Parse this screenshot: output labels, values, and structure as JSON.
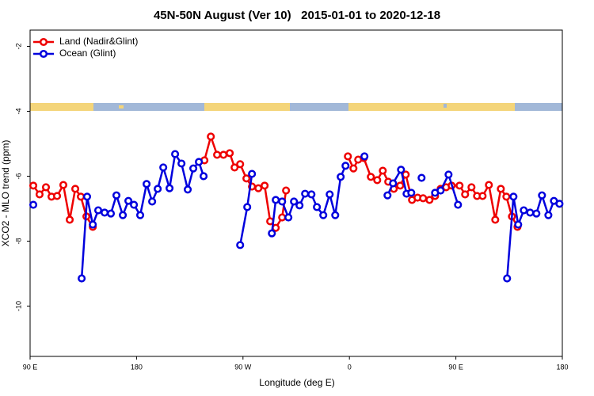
{
  "chart_data": {
    "type": "line",
    "title": "45N-50N August (Ver 10)   2015-01-01 to 2020-12-18",
    "x_label": "Longitude (deg E)",
    "y_label": "XCO2 - MLO trend (ppm)",
    "xlim": [
      90,
      540
    ],
    "ylim": [
      -11.55,
      -1.5
    ],
    "xticks": [
      {
        "value": 90,
        "label": "90 E"
      },
      180,
      {
        "value": 270,
        "label": "90 W"
      },
      {
        "value": 360,
        "label": "0"
      },
      {
        "value": 450,
        "label": "90 E"
      },
      {
        "value": 540,
        "label": "180"
      }
    ],
    "yticks": [
      -2,
      -4,
      -6,
      -8,
      -10
    ],
    "legend": "top-left",
    "series": [
      {
        "name": "Land (Nadir&Glint)",
        "color": "#ee0000",
        "x": [
          92.7,
          98.0,
          103.4,
          108.1,
          112.8,
          118.1,
          123.5,
          128.2,
          132.9,
          137.6,
          143.0,
          null,
          237.4,
          242.8,
          248.1,
          253.5,
          258.8,
          262.9,
          267.6,
          272.9,
          277.6,
          283.0,
          288.3,
          293.0,
          297.7,
          303.1,
          306.4,
          null,
          358.7,
          363.4,
          367.4,
          372.1,
          378.1,
          383.5,
          388.2,
          392.8,
          397.5,
          402.9,
          407.6,
          412.9,
          417.6,
          422.3,
          427.7,
          432.4,
          437.1,
          441.8,
          446.4,
          453.1,
          457.8,
          463.2,
          467.9,
          472.6,
          477.9,
          483.3,
          488.0,
          492.7,
          497.4,
          502.1
        ],
        "values": [
          -6.29,
          -6.56,
          -6.34,
          -6.63,
          -6.61,
          -6.27,
          -7.34,
          -6.39,
          -6.63,
          -7.24,
          -7.56,
          null,
          -5.51,
          -4.78,
          -5.34,
          -5.34,
          -5.29,
          -5.73,
          -5.63,
          -6.07,
          -6.32,
          -6.37,
          -6.29,
          -7.39,
          -7.59,
          -7.27,
          -6.44,
          null,
          -5.39,
          -5.76,
          -5.49,
          -5.44,
          -6.02,
          -6.12,
          -5.83,
          -6.17,
          -6.39,
          -6.29,
          -5.95,
          -6.73,
          -6.66,
          -6.68,
          -6.73,
          -6.61,
          -6.39,
          -6.34,
          -6.29,
          -6.29,
          -6.56,
          -6.34,
          -6.61,
          -6.61,
          -6.27,
          -7.34,
          -6.39,
          -6.63,
          -7.24,
          -7.56
        ]
      },
      {
        "name": "Ocean (Glint)",
        "color": "#0000dd",
        "x": [
          92.7,
          null,
          133.6,
          138.2,
          143.0,
          147.6,
          153.0,
          158.3,
          163.0,
          168.4,
          173.1,
          177.8,
          183.1,
          188.5,
          193.2,
          197.9,
          202.6,
          207.9,
          212.6,
          218.0,
          223.3,
          228.0,
          232.7,
          236.7,
          null,
          267.6,
          273.6,
          277.6,
          null,
          294.4,
          297.7,
          303.1,
          308.4,
          313.1,
          317.8,
          322.5,
          327.9,
          332.5,
          337.9,
          343.3,
          348.0,
          352.6,
          356.7,
          null,
          372.7,
          null,
          392.2,
          396.9,
          403.6,
          408.3,
          412.3,
          null,
          421.0,
          null,
          432.4,
          437.1,
          443.8,
          451.8,
          null,
          493.3,
          498.7,
          502.7,
          507.4,
          512.8,
          518.1,
          522.8,
          528.2,
          532.9,
          537.6
        ],
        "values": [
          -6.88,
          null,
          -9.15,
          -6.63,
          -7.49,
          -7.05,
          -7.12,
          -7.15,
          -6.59,
          -7.2,
          -6.76,
          -6.88,
          -7.2,
          -6.24,
          -6.78,
          -6.39,
          -5.73,
          -6.37,
          -5.32,
          -5.61,
          -6.41,
          -5.76,
          -5.56,
          -6.0,
          null,
          -8.12,
          -6.95,
          -5.93,
          null,
          -7.76,
          -6.73,
          -6.78,
          -7.27,
          -6.78,
          -6.9,
          -6.54,
          -6.56,
          -6.95,
          -7.2,
          -6.56,
          -7.2,
          -6.02,
          -5.68,
          null,
          -5.39,
          null,
          -6.59,
          -6.22,
          -5.8,
          -6.54,
          -6.51,
          null,
          -6.05,
          null,
          -6.51,
          -6.44,
          -5.95,
          -6.88,
          null,
          -9.15,
          -6.63,
          -7.49,
          -7.05,
          -7.12,
          -7.15,
          -6.59,
          -7.2,
          -6.76,
          -6.85
        ]
      }
    ]
  }
}
